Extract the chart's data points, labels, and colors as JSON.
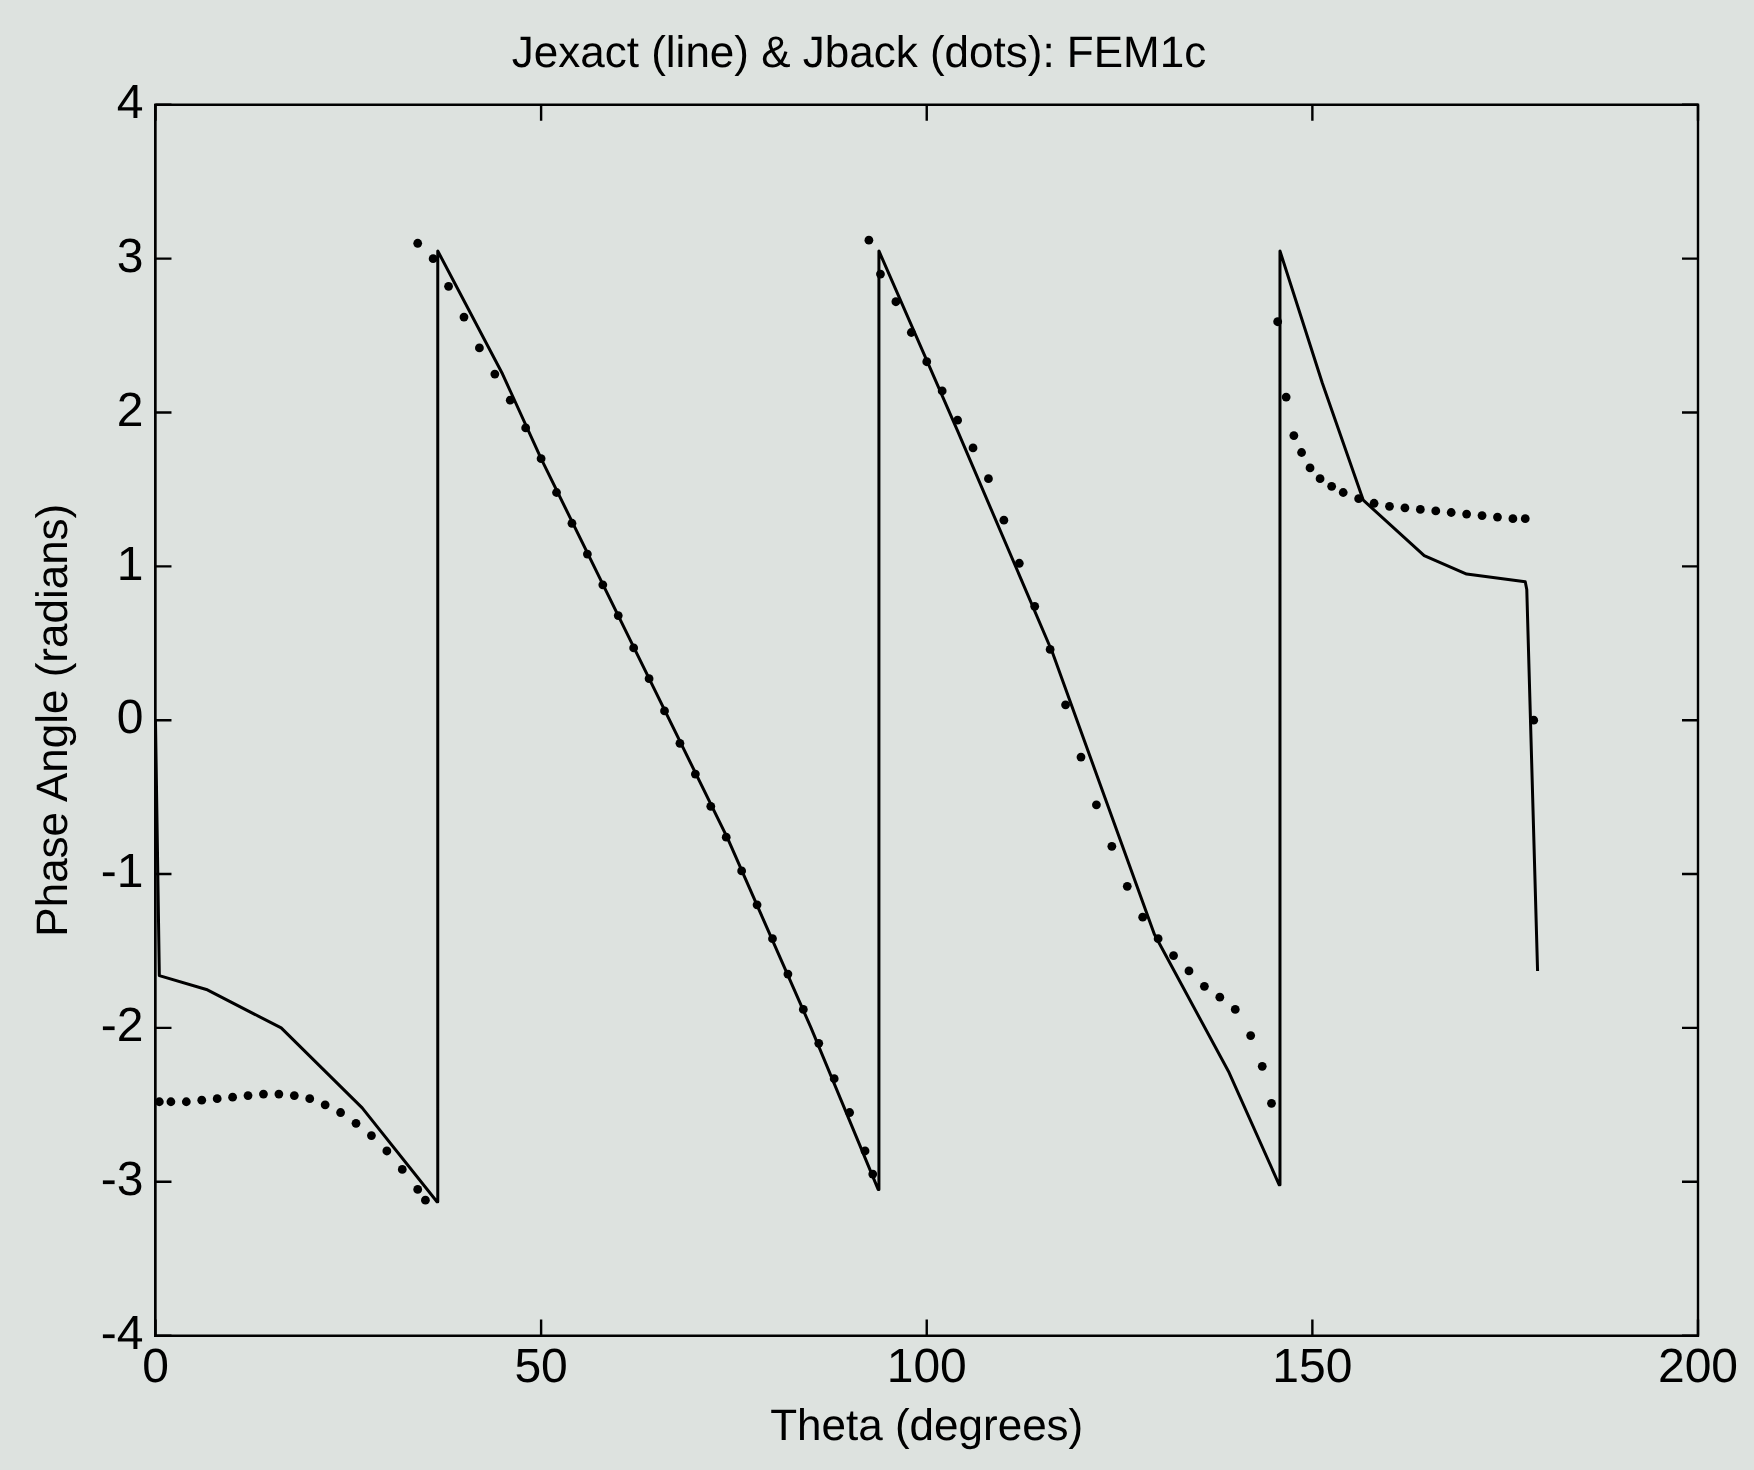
{
  "chart_data": {
    "type": "line",
    "title": "Jexact (line) & Jback (dots): FEM1c",
    "xlabel": "Theta (degrees)",
    "ylabel": "Phase Angle (radians)",
    "xlim": [
      0,
      200
    ],
    "xticks": [
      0,
      50,
      100,
      150,
      200
    ],
    "ylim": [
      -4,
      4
    ],
    "yticks": [
      -4,
      -3,
      -2,
      -1,
      0,
      1,
      2,
      3,
      4
    ],
    "grid": false,
    "legend": false,
    "series": [
      {
        "type": "line",
        "color": "#000000",
        "marker": "none",
        "x": [
          0,
          0.5,
          6.6,
          16.3,
          26.8,
          36.5,
          36.6,
          45,
          50,
          60,
          74.2,
          85,
          93.7,
          93.8,
          104,
          116.3,
          129.5,
          139.2,
          145.7,
          145.8,
          151.3,
          156.6,
          164.5,
          170,
          177.6,
          177.8,
          179.2
        ],
        "values": [
          0,
          -1.66,
          -1.75,
          -2.0,
          -2.52,
          -3.13,
          3.05,
          2.25,
          1.7,
          0.68,
          -0.77,
          -2.0,
          -3.05,
          3.05,
          1.88,
          0.44,
          -1.39,
          -2.29,
          -3.02,
          3.05,
          2.19,
          1.43,
          1.07,
          0.95,
          0.9,
          0.85,
          -1.63
        ]
      },
      {
        "type": "scatter",
        "color": "#000000",
        "marker": "circle",
        "x": [
          0.5,
          2,
          4,
          6,
          8,
          10,
          12,
          14,
          16,
          18,
          20,
          22,
          24,
          26,
          28,
          30,
          32,
          34,
          35,
          34,
          36,
          38,
          40,
          42,
          44,
          46,
          48,
          50,
          52,
          54,
          56,
          58,
          60,
          62,
          64,
          66,
          68,
          70,
          72,
          74,
          76,
          78,
          80,
          82,
          84,
          86,
          88,
          90,
          92,
          93,
          92.5,
          94,
          96,
          98,
          100,
          102,
          104,
          106,
          108,
          110,
          112,
          114,
          116,
          118,
          120,
          122,
          124,
          126,
          128,
          130,
          132,
          134,
          136,
          138,
          140,
          142,
          143.5,
          144.7,
          145.5,
          146.6,
          147.6,
          148.6,
          149.7,
          151,
          152.5,
          154,
          156,
          158,
          160,
          162,
          164,
          166,
          168,
          170,
          172,
          174,
          176,
          177.6,
          178.7
        ],
        "values": [
          -2.48,
          -2.48,
          -2.48,
          -2.47,
          -2.46,
          -2.45,
          -2.44,
          -2.43,
          -2.43,
          -2.44,
          -2.46,
          -2.5,
          -2.55,
          -2.62,
          -2.7,
          -2.8,
          -2.92,
          -3.05,
          -3.12,
          3.1,
          3.0,
          2.82,
          2.62,
          2.42,
          2.25,
          2.08,
          1.9,
          1.7,
          1.48,
          1.28,
          1.08,
          0.88,
          0.68,
          0.47,
          0.27,
          0.06,
          -0.15,
          -0.35,
          -0.56,
          -0.76,
          -0.98,
          -1.2,
          -1.42,
          -1.65,
          -1.88,
          -2.1,
          -2.33,
          -2.55,
          -2.8,
          -2.95,
          3.12,
          2.9,
          2.72,
          2.52,
          2.33,
          2.14,
          1.95,
          1.77,
          1.57,
          1.3,
          1.02,
          0.74,
          0.46,
          0.1,
          -0.24,
          -0.55,
          -0.82,
          -1.08,
          -1.28,
          -1.42,
          -1.53,
          -1.63,
          -1.73,
          -1.8,
          -1.88,
          -2.05,
          -2.25,
          -2.49,
          2.59,
          2.1,
          1.85,
          1.74,
          1.64,
          1.57,
          1.52,
          1.48,
          1.44,
          1.41,
          1.39,
          1.38,
          1.37,
          1.36,
          1.35,
          1.34,
          1.33,
          1.32,
          1.31,
          1.31,
          0.0
        ]
      }
    ]
  }
}
